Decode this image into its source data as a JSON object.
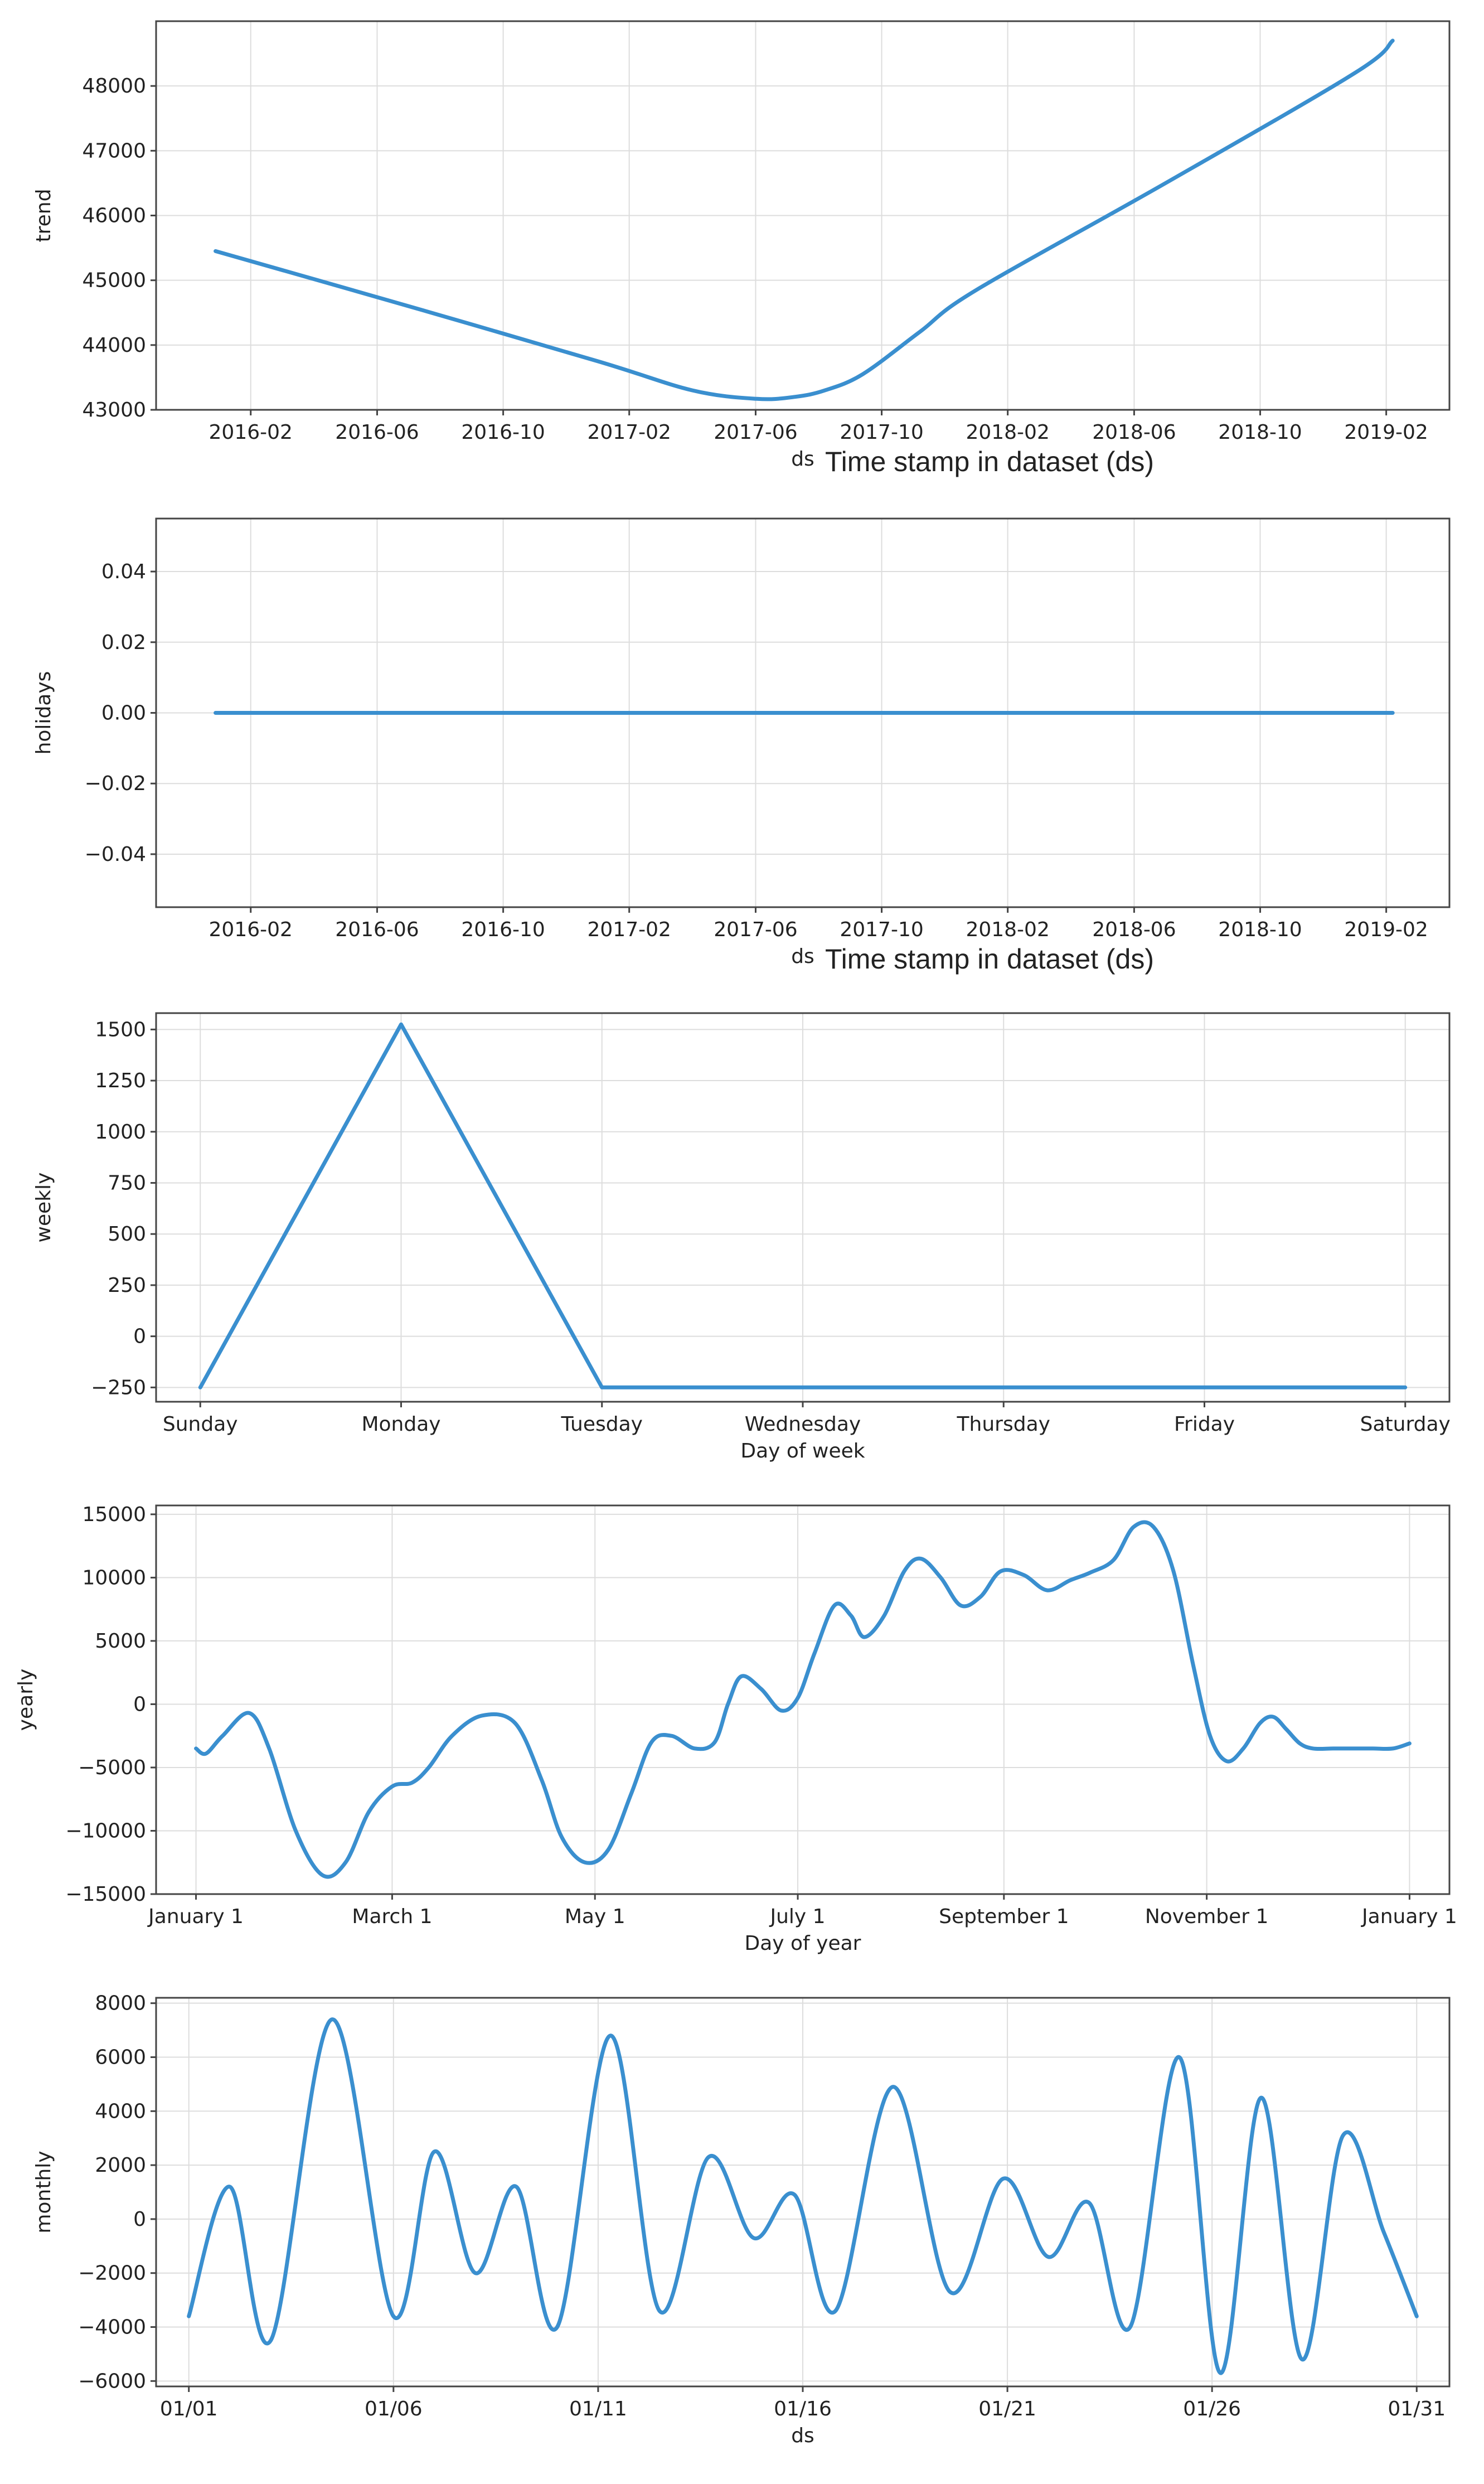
{
  "chart_data": [
    {
      "type": "line",
      "name": "trend",
      "xlabel": "ds",
      "annotation": "Time stamp in dataset (ds)",
      "ylabel": "trend",
      "ylim": [
        43000,
        49000
      ],
      "yticks": [
        43000,
        44000,
        45000,
        46000,
        47000,
        48000
      ],
      "xlim": [
        2015.833,
        2019.25
      ],
      "xticks": [
        {
          "v": 2016.083,
          "label": "2016-02"
        },
        {
          "v": 2016.417,
          "label": "2016-06"
        },
        {
          "v": 2016.75,
          "label": "2016-10"
        },
        {
          "v": 2017.083,
          "label": "2017-02"
        },
        {
          "v": 2017.417,
          "label": "2017-06"
        },
        {
          "v": 2017.75,
          "label": "2017-10"
        },
        {
          "v": 2018.083,
          "label": "2018-02"
        },
        {
          "v": 2018.417,
          "label": "2018-06"
        },
        {
          "v": 2018.75,
          "label": "2018-10"
        },
        {
          "v": 2019.083,
          "label": "2019-02"
        }
      ],
      "x": [
        2015.99,
        2016.5,
        2017.0,
        2017.25,
        2017.42,
        2017.52,
        2017.6,
        2017.7,
        2017.85,
        2018.0,
        2018.5,
        2019.0,
        2019.1
      ],
      "y": [
        45450,
        44600,
        43750,
        43300,
        43170,
        43200,
        43300,
        43550,
        44200,
        44850,
        46500,
        48200,
        48700
      ],
      "grid": true,
      "color": "#3a8fcf"
    },
    {
      "type": "line",
      "name": "holidays",
      "xlabel": "ds",
      "annotation": "Time stamp in dataset (ds)",
      "ylabel": "holidays",
      "ylim": [
        -0.055,
        0.055
      ],
      "yticks": [
        -0.04,
        -0.02,
        0.0,
        0.02,
        0.04
      ],
      "ytick_labels": [
        "−0.04",
        "−0.02",
        "0.00",
        "0.02",
        "0.04"
      ],
      "xlim": [
        2015.833,
        2019.25
      ],
      "xticks": [
        {
          "v": 2016.083,
          "label": "2016-02"
        },
        {
          "v": 2016.417,
          "label": "2016-06"
        },
        {
          "v": 2016.75,
          "label": "2016-10"
        },
        {
          "v": 2017.083,
          "label": "2017-02"
        },
        {
          "v": 2017.417,
          "label": "2017-06"
        },
        {
          "v": 2017.75,
          "label": "2017-10"
        },
        {
          "v": 2018.083,
          "label": "2018-02"
        },
        {
          "v": 2018.417,
          "label": "2018-06"
        },
        {
          "v": 2018.75,
          "label": "2018-10"
        },
        {
          "v": 2019.083,
          "label": "2019-02"
        }
      ],
      "x": [
        2015.99,
        2019.1
      ],
      "y": [
        0,
        0
      ],
      "grid": true,
      "color": "#3a8fcf"
    },
    {
      "type": "line",
      "name": "weekly",
      "xlabel": "Day of week",
      "ylabel": "weekly",
      "ylim": [
        -320,
        1580
      ],
      "yticks": [
        -250,
        0,
        250,
        500,
        750,
        1000,
        1250,
        1500
      ],
      "ytick_labels": [
        "−250",
        "0",
        "250",
        "500",
        "750",
        "1000",
        "1250",
        "1500"
      ],
      "xlim": [
        -0.22,
        6.22
      ],
      "xticks": [
        {
          "v": 0,
          "label": "Sunday"
        },
        {
          "v": 1,
          "label": "Monday"
        },
        {
          "v": 2,
          "label": "Tuesday"
        },
        {
          "v": 3,
          "label": "Wednesday"
        },
        {
          "v": 4,
          "label": "Thursday"
        },
        {
          "v": 5,
          "label": "Friday"
        },
        {
          "v": 6,
          "label": "Saturday"
        }
      ],
      "x": [
        0,
        1,
        2,
        3,
        4,
        5,
        6
      ],
      "y": [
        -250,
        1525,
        -250,
        -250,
        -250,
        -250,
        -250
      ],
      "grid": true,
      "color": "#3a8fcf"
    },
    {
      "type": "line",
      "name": "yearly",
      "xlabel": "Day of year",
      "ylabel": "yearly",
      "ylim": [
        -15000,
        15700
      ],
      "yticks": [
        -15000,
        -10000,
        -5000,
        0,
        5000,
        10000,
        15000
      ],
      "ytick_labels": [
        "−15000",
        "−10000",
        "−5000",
        "0",
        "5000",
        "10000",
        "15000"
      ],
      "xlim": [
        -12,
        377
      ],
      "xticks": [
        {
          "v": 0,
          "label": "January 1"
        },
        {
          "v": 59,
          "label": "March 1"
        },
        {
          "v": 120,
          "label": "May 1"
        },
        {
          "v": 181,
          "label": "July 1"
        },
        {
          "v": 243,
          "label": "September 1"
        },
        {
          "v": 304,
          "label": "November 1"
        },
        {
          "v": 365,
          "label": "January 1"
        }
      ],
      "x": [
        0,
        3,
        8,
        16,
        22,
        30,
        38,
        45,
        52,
        59,
        65,
        70,
        77,
        86,
        96,
        104,
        110,
        117,
        124,
        131,
        137,
        143,
        150,
        156,
        160,
        164,
        170,
        176,
        181,
        186,
        192,
        197,
        201,
        207,
        213,
        218,
        224,
        230,
        236,
        242,
        249,
        256,
        263,
        269,
        276,
        282,
        288,
        294,
        300,
        305,
        310,
        315,
        320,
        324,
        328,
        332,
        336,
        342,
        348,
        354,
        360,
        365
      ],
      "y": [
        -3500,
        -3900,
        -2500,
        -700,
        -3500,
        -10000,
        -13500,
        -12500,
        -8500,
        -6500,
        -6200,
        -5000,
        -2500,
        -900,
        -1500,
        -6000,
        -10500,
        -12500,
        -11500,
        -7000,
        -3000,
        -2500,
        -3500,
        -3000,
        0,
        2200,
        1200,
        -500,
        500,
        4000,
        7800,
        7000,
        5300,
        7000,
        10500,
        11500,
        10000,
        7800,
        8500,
        10500,
        10200,
        9000,
        9800,
        10400,
        11400,
        14000,
        14000,
        10500,
        3000,
        -2500,
        -4500,
        -3500,
        -1500,
        -1000,
        -2000,
        -3100,
        -3500,
        -3500,
        -3500,
        -3500,
        -3500,
        -3100
      ],
      "grid": true,
      "color": "#3a8fcf"
    },
    {
      "type": "line",
      "name": "monthly",
      "xlabel": "ds",
      "ylabel": "monthly",
      "ylim": [
        -6200,
        8200
      ],
      "yticks": [
        -6000,
        -4000,
        -2000,
        0,
        2000,
        4000,
        6000,
        8000
      ],
      "ytick_labels": [
        "−6000",
        "−4000",
        "−2000",
        "0",
        "2000",
        "4000",
        "6000",
        "8000"
      ],
      "xlim": [
        0.2,
        31.8
      ],
      "xticks": [
        {
          "v": 1,
          "label": "01/01"
        },
        {
          "v": 6,
          "label": "01/06"
        },
        {
          "v": 11,
          "label": "01/11"
        },
        {
          "v": 16,
          "label": "01/16"
        },
        {
          "v": 21,
          "label": "01/21"
        },
        {
          "v": 26,
          "label": "01/26"
        },
        {
          "v": 31,
          "label": "01/31"
        }
      ],
      "x": [
        1.0,
        2.0,
        3.0,
        4.5,
        6.0,
        7.0,
        8.0,
        9.0,
        10.0,
        11.3,
        12.5,
        13.7,
        14.8,
        15.8,
        16.8,
        18.2,
        19.6,
        20.9,
        22.0,
        23.0,
        24.0,
        25.2,
        26.2,
        27.2,
        28.2,
        29.2,
        30.2,
        31.0
      ],
      "y": [
        -3600,
        1200,
        -4500,
        7400,
        -3600,
        2500,
        -2000,
        1200,
        -4000,
        6800,
        -3400,
        2300,
        -700,
        900,
        -3400,
        4900,
        -2700,
        1500,
        -1400,
        600,
        -4000,
        6000,
        -5700,
        4500,
        -5200,
        3100,
        -500,
        -3600
      ],
      "grid": true,
      "color": "#3a8fcf"
    }
  ]
}
